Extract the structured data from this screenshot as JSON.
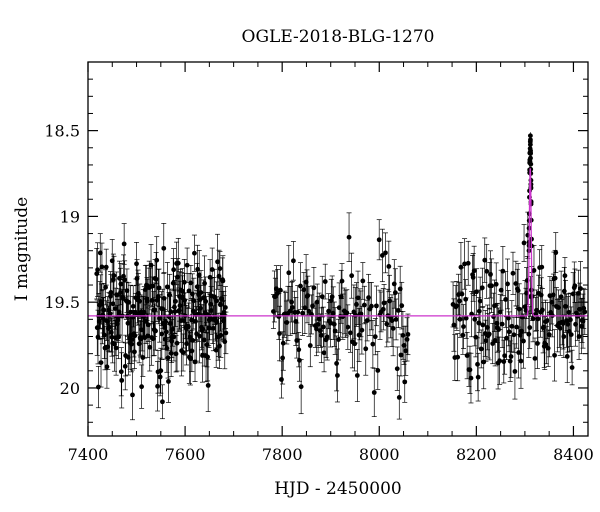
{
  "chart_data": {
    "type": "scatter",
    "title": "OGLE-2018-BLG-1270",
    "xlabel": "HJD - 2450000",
    "ylabel": "I magnitude",
    "xlim": [
      7400,
      8430
    ],
    "ylim": [
      20.28,
      18.1
    ],
    "y_axis_inverted": true,
    "grid": false,
    "xticks": [
      7400,
      7600,
      7800,
      8000,
      8200,
      8400
    ],
    "xtick_labels": [
      "7400",
      "7600",
      "7800",
      "8000",
      "8200",
      "8400"
    ],
    "yticks": [
      18.5,
      19,
      19.5,
      20
    ],
    "ytick_labels": [
      "18.5",
      "19",
      "19.5",
      "20"
    ],
    "colors": {
      "points": "#000000",
      "model": "#cc33cc"
    },
    "series": [
      {
        "kind": "photometry",
        "baseline_mag": 19.58,
        "scatter_mag": 0.17,
        "typical_error_mag": 0.13,
        "seasons": [
          {
            "start": 7418,
            "end": 7685,
            "density": 1.0
          },
          {
            "start": 7782,
            "end": 8060,
            "density": 0.45
          },
          {
            "start": 8152,
            "end": 8425,
            "density": 0.6
          }
        ],
        "event": {
          "t0": 8311,
          "peak_mag": 18.58,
          "tE_days": 4
        }
      },
      {
        "kind": "model",
        "baseline_mag": 19.58,
        "t0": 8311,
        "peak_mag": 18.72,
        "tE_days": 4
      }
    ]
  }
}
